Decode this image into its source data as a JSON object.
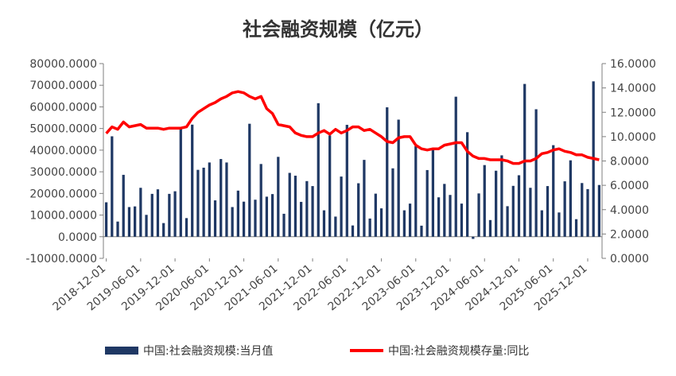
{
  "chart_data": {
    "type": "bar+line",
    "title": "社会融资规模（亿元）",
    "left_axis": {
      "ylim": [
        -10000,
        80000
      ],
      "ticks": [
        -10000,
        0,
        10000,
        20000,
        30000,
        40000,
        50000,
        60000,
        70000,
        80000
      ],
      "tick_labels": [
        "-10000.0000",
        "0.0000",
        "10000.0000",
        "20000.0000",
        "30000.0000",
        "40000.0000",
        "50000.0000",
        "60000.0000",
        "70000.0000",
        "80000.0000"
      ]
    },
    "right_axis": {
      "ylim": [
        0,
        16
      ],
      "ticks": [
        0,
        2,
        4,
        6,
        8,
        10,
        12,
        14,
        16
      ],
      "tick_labels": [
        "0.0000",
        "2.0000",
        "4.0000",
        "6.0000",
        "8.0000",
        "10.0000",
        "12.0000",
        "14.0000",
        "16.0000"
      ]
    },
    "x_axis": {
      "start": "2018-12",
      "tick_labels": [
        "2018-12-01",
        "2019-06-01",
        "2019-12-01",
        "2020-06-01",
        "2020-12-01",
        "2021-06-01",
        "2021-12-01",
        "2022-06-01",
        "2022-12-01",
        "2023-06-01",
        "2023-12-01",
        "2024-06-01",
        "2024-12-01",
        "2025-06-01",
        "2025-12-01"
      ]
    },
    "series": [
      {
        "name": "中国:社会融资规模:当月值",
        "kind": "bar",
        "axis": "left",
        "color": "#1f3864",
        "values": [
          15900,
          46400,
          7000,
          28600,
          13700,
          14000,
          22600,
          10100,
          19800,
          21900,
          6300,
          19800,
          21000,
          50700,
          8600,
          51800,
          30900,
          31900,
          34300,
          16800,
          35900,
          34300,
          13700,
          21300,
          16200,
          52200,
          17100,
          33600,
          18500,
          19700,
          36900,
          10600,
          29500,
          28200,
          16100,
          25700,
          23400,
          61700,
          12200,
          46800,
          9300,
          27800,
          51700,
          5200,
          24700,
          35500,
          8400,
          19900,
          13100,
          59800,
          31600,
          54100,
          12200,
          15300,
          41800,
          5100,
          30800,
          40400,
          18200,
          24400,
          19300,
          64700,
          15300,
          48300,
          -1000,
          20000,
          33100,
          7700,
          30500,
          37600,
          14100,
          23500,
          28400,
          70600,
          22600,
          58900,
          12200,
          23400,
          42300,
          11200,
          25600,
          35300,
          8100,
          24800,
          22000,
          71800,
          23900
        ]
      },
      {
        "name": "中国:社会融资规模存量:同比",
        "kind": "line",
        "axis": "right",
        "color": "#ff0000",
        "values": [
          10.26,
          10.8,
          10.6,
          11.2,
          10.8,
          10.9,
          11.0,
          10.7,
          10.7,
          10.7,
          10.6,
          10.7,
          10.7,
          10.7,
          10.8,
          11.5,
          12.0,
          12.3,
          12.6,
          12.8,
          13.1,
          13.3,
          13.6,
          13.7,
          13.6,
          13.3,
          13.1,
          13.3,
          12.3,
          11.9,
          11.0,
          10.9,
          10.8,
          10.3,
          10.1,
          10.0,
          10.0,
          10.3,
          10.5,
          10.2,
          10.6,
          10.3,
          10.5,
          10.8,
          10.8,
          10.5,
          10.6,
          10.3,
          10.0,
          9.6,
          9.5,
          9.9,
          10.0,
          10.0,
          9.3,
          9.0,
          8.9,
          9.0,
          9.0,
          9.3,
          9.4,
          9.5,
          9.5,
          8.8,
          8.4,
          8.2,
          8.2,
          8.1,
          8.1,
          8.1,
          8.0,
          7.8,
          7.8,
          8.0,
          8.0,
          8.2,
          8.6,
          8.7,
          8.9,
          9.0,
          8.8,
          8.7,
          8.5,
          8.5,
          8.3,
          8.2,
          8.1
        ]
      }
    ],
    "legend": {
      "placement": "bottom"
    }
  }
}
